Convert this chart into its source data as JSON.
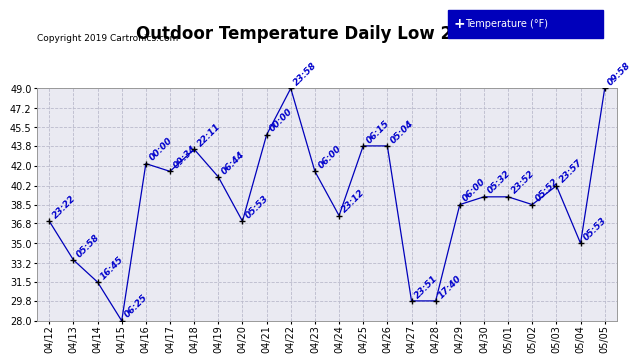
{
  "title": "Outdoor Temperature Daily Low 20190506",
  "copyright": "Copyright 2019 Cartronics.com",
  "legend_label": "Temperature (°F)",
  "dates": [
    "04/12",
    "04/13",
    "04/14",
    "04/15",
    "04/16",
    "04/17",
    "04/18",
    "04/19",
    "04/20",
    "04/21",
    "04/22",
    "04/23",
    "04/24",
    "04/25",
    "04/26",
    "04/27",
    "04/28",
    "04/29",
    "04/30",
    "05/01",
    "05/02",
    "05/03",
    "05/04",
    "05/05"
  ],
  "temps": [
    37.0,
    33.5,
    31.5,
    28.0,
    42.2,
    41.5,
    43.5,
    41.0,
    37.0,
    44.8,
    49.0,
    41.5,
    37.5,
    43.8,
    43.8,
    29.8,
    29.8,
    38.5,
    39.2,
    39.2,
    38.5,
    40.2,
    35.0,
    49.0
  ],
  "times": [
    "23:22",
    "05:58",
    "16:45",
    "06:25",
    "00:00",
    "09:34",
    "22:11",
    "06:44",
    "05:53",
    "00:00",
    "23:58",
    "06:00",
    "23:12",
    "06:15",
    "05:04",
    "23:51",
    "17:40",
    "06:00",
    "05:32",
    "23:52",
    "05:52",
    "23:57",
    "05:53",
    "09:58"
  ],
  "line_color": "#0000BB",
  "marker_color": "#000000",
  "label_color": "#0000CC",
  "grid_color": "#BBBBCC",
  "bg_color": "#FFFFFF",
  "plot_bg_color": "#EAEAF2",
  "ylim_min": 28.0,
  "ylim_max": 49.0,
  "yticks": [
    28.0,
    29.8,
    31.5,
    33.2,
    35.0,
    36.8,
    38.5,
    40.2,
    42.0,
    43.8,
    45.5,
    47.2,
    49.0
  ],
  "title_fontsize": 12,
  "label_fontsize": 6.5,
  "tick_fontsize": 7,
  "copyright_fontsize": 6.5
}
